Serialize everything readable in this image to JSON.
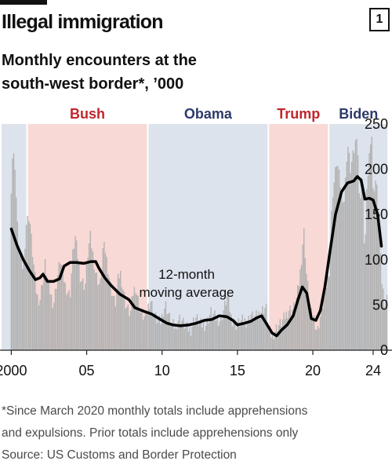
{
  "header": {
    "title": "Illegal immigration",
    "chart_number": "1"
  },
  "subtitle_line1": "Monthly encounters at the",
  "subtitle_line2": "south-west border*, ’000",
  "footnote_line1": "*Since March 2020 monthly totals include apprehensions",
  "footnote_line2": "and expulsions. Prior totals include apprehensions only",
  "source": "Source: US Customs and Border Protection",
  "colors": {
    "bars": "#b3b3b3",
    "line": "#000000",
    "republican_band": "#f8d9d5",
    "democrat_band": "#dde3ec",
    "republican_text": "#c0262b",
    "democrat_text": "#2d3a6b",
    "axis": "#222222"
  },
  "chart_data": {
    "type": "bar+line",
    "xlim": [
      1999.25,
      2025.25
    ],
    "ylim": [
      0,
      250
    ],
    "y_ticks": [
      "250",
      "200",
      "150",
      "100",
      "50",
      "0"
    ],
    "x_ticks": [
      {
        "value": 2000,
        "label": "2000"
      },
      {
        "value": 2005,
        "label": "05"
      },
      {
        "value": 2010,
        "label": "10"
      },
      {
        "value": 2015,
        "label": "15"
      },
      {
        "value": 2020,
        "label": "20"
      },
      {
        "value": 2024,
        "label": "24"
      }
    ],
    "administrations": [
      {
        "name": "Bush",
        "start": 2001.05,
        "end": 2009.05,
        "party": "R"
      },
      {
        "name": "Obama",
        "start": 2009.05,
        "end": 2017.05,
        "party": "D"
      },
      {
        "name": "Trump",
        "start": 2017.05,
        "end": 2021.05,
        "party": "R"
      },
      {
        "name": "Biden",
        "start": 2021.05,
        "end": 2025.0,
        "party": "D"
      }
    ],
    "monthly_bar_anchors": [
      [
        2000.0,
        180
      ],
      [
        2000.1,
        220
      ],
      [
        2000.25,
        205
      ],
      [
        2000.4,
        140
      ],
      [
        2000.6,
        100
      ],
      [
        2000.8,
        90
      ],
      [
        2001.0,
        140
      ],
      [
        2001.2,
        150
      ],
      [
        2001.4,
        110
      ],
      [
        2001.7,
        60
      ],
      [
        2001.9,
        55
      ],
      [
        2002.1,
        80
      ],
      [
        2002.25,
        95
      ],
      [
        2002.5,
        70
      ],
      [
        2002.8,
        50
      ],
      [
        2003.1,
        85
      ],
      [
        2003.25,
        100
      ],
      [
        2003.6,
        70
      ],
      [
        2003.9,
        60
      ],
      [
        2004.1,
        110
      ],
      [
        2004.25,
        125
      ],
      [
        2004.6,
        80
      ],
      [
        2004.9,
        70
      ],
      [
        2005.1,
        110
      ],
      [
        2005.25,
        125
      ],
      [
        2005.6,
        85
      ],
      [
        2005.9,
        70
      ],
      [
        2006.1,
        115
      ],
      [
        2006.25,
        110
      ],
      [
        2006.6,
        70
      ],
      [
        2006.9,
        50
      ],
      [
        2007.1,
        80
      ],
      [
        2007.25,
        85
      ],
      [
        2007.6,
        50
      ],
      [
        2007.9,
        40
      ],
      [
        2008.1,
        65
      ],
      [
        2008.25,
        70
      ],
      [
        2008.6,
        40
      ],
      [
        2008.9,
        35
      ],
      [
        2009.1,
        50
      ],
      [
        2009.25,
        55
      ],
      [
        2009.6,
        35
      ],
      [
        2009.9,
        30
      ],
      [
        2010.1,
        45
      ],
      [
        2010.25,
        50
      ],
      [
        2010.6,
        30
      ],
      [
        2010.9,
        25
      ],
      [
        2011.1,
        35
      ],
      [
        2011.25,
        35
      ],
      [
        2011.6,
        25
      ],
      [
        2011.9,
        22
      ],
      [
        2012.1,
        33
      ],
      [
        2012.25,
        36
      ],
      [
        2012.6,
        28
      ],
      [
        2012.9,
        28
      ],
      [
        2013.1,
        36
      ],
      [
        2013.25,
        42
      ],
      [
        2013.6,
        35
      ],
      [
        2013.9,
        33
      ],
      [
        2014.1,
        45
      ],
      [
        2014.35,
        60
      ],
      [
        2014.6,
        35
      ],
      [
        2014.9,
        28
      ],
      [
        2015.1,
        30
      ],
      [
        2015.4,
        33
      ],
      [
        2015.7,
        32
      ],
      [
        2015.9,
        40
      ],
      [
        2016.1,
        35
      ],
      [
        2016.4,
        40
      ],
      [
        2016.7,
        45
      ],
      [
        2016.9,
        48
      ],
      [
        2017.1,
        22
      ],
      [
        2017.3,
        15
      ],
      [
        2017.6,
        25
      ],
      [
        2017.9,
        30
      ],
      [
        2018.1,
        35
      ],
      [
        2018.4,
        45
      ],
      [
        2018.7,
        45
      ],
      [
        2018.9,
        55
      ],
      [
        2019.1,
        75
      ],
      [
        2019.3,
        110
      ],
      [
        2019.4,
        135
      ],
      [
        2019.6,
        80
      ],
      [
        2019.9,
        40
      ],
      [
        2020.1,
        35
      ],
      [
        2020.3,
        20
      ],
      [
        2020.6,
        45
      ],
      [
        2020.9,
        70
      ],
      [
        2021.1,
        90
      ],
      [
        2021.3,
        170
      ],
      [
        2021.6,
        210
      ],
      [
        2021.9,
        175
      ],
      [
        2022.1,
        165
      ],
      [
        2022.3,
        230
      ],
      [
        2022.5,
        200
      ],
      [
        2022.8,
        225
      ],
      [
        2022.95,
        245
      ],
      [
        2023.1,
        160
      ],
      [
        2023.3,
        200
      ],
      [
        2023.45,
        100
      ],
      [
        2023.6,
        180
      ],
      [
        2023.9,
        250
      ],
      [
        2024.0,
        175
      ],
      [
        2024.2,
        190
      ],
      [
        2024.4,
        140
      ],
      [
        2024.55,
        80
      ],
      [
        2024.75,
        55
      ],
      [
        2024.9,
        57
      ]
    ],
    "series": [
      {
        "name": "12-month moving average",
        "label_line1": "12-month",
        "label_line2": "moving average",
        "points": [
          [
            2000.0,
            134
          ],
          [
            2000.4,
            115
          ],
          [
            2000.8,
            100
          ],
          [
            2001.2,
            88
          ],
          [
            2001.6,
            78
          ],
          [
            2001.9,
            80
          ],
          [
            2002.1,
            84
          ],
          [
            2002.4,
            76
          ],
          [
            2002.8,
            76
          ],
          [
            2003.2,
            79
          ],
          [
            2003.5,
            93
          ],
          [
            2003.9,
            97
          ],
          [
            2004.3,
            97
          ],
          [
            2004.8,
            96
          ],
          [
            2005.3,
            98
          ],
          [
            2005.6,
            98
          ],
          [
            2005.8,
            91
          ],
          [
            2006.2,
            80
          ],
          [
            2006.6,
            72
          ],
          [
            2007.2,
            62
          ],
          [
            2007.8,
            56
          ],
          [
            2008.2,
            47
          ],
          [
            2008.8,
            43
          ],
          [
            2009.3,
            40
          ],
          [
            2009.8,
            35
          ],
          [
            2010.3,
            30
          ],
          [
            2010.7,
            28
          ],
          [
            2011.2,
            27
          ],
          [
            2011.8,
            28
          ],
          [
            2012.3,
            30
          ],
          [
            2012.8,
            33
          ],
          [
            2013.3,
            34
          ],
          [
            2013.8,
            38
          ],
          [
            2014.3,
            37
          ],
          [
            2014.7,
            33
          ],
          [
            2015.0,
            28
          ],
          [
            2015.5,
            30
          ],
          [
            2015.9,
            32
          ],
          [
            2016.3,
            36
          ],
          [
            2016.6,
            38
          ],
          [
            2016.9,
            30
          ],
          [
            2017.3,
            19
          ],
          [
            2017.6,
            16
          ],
          [
            2017.9,
            22
          ],
          [
            2018.3,
            28
          ],
          [
            2018.7,
            38
          ],
          [
            2019.0,
            55
          ],
          [
            2019.3,
            70
          ],
          [
            2019.6,
            63
          ],
          [
            2019.9,
            35
          ],
          [
            2020.2,
            33
          ],
          [
            2020.5,
            44
          ],
          [
            2020.8,
            70
          ],
          [
            2021.1,
            105
          ],
          [
            2021.5,
            150
          ],
          [
            2021.9,
            175
          ],
          [
            2022.3,
            185
          ],
          [
            2022.7,
            187
          ],
          [
            2022.95,
            192
          ],
          [
            2023.2,
            188
          ],
          [
            2023.45,
            167
          ],
          [
            2023.75,
            168
          ],
          [
            2024.0,
            166
          ],
          [
            2024.3,
            150
          ],
          [
            2024.55,
            115
          ]
        ]
      }
    ]
  }
}
